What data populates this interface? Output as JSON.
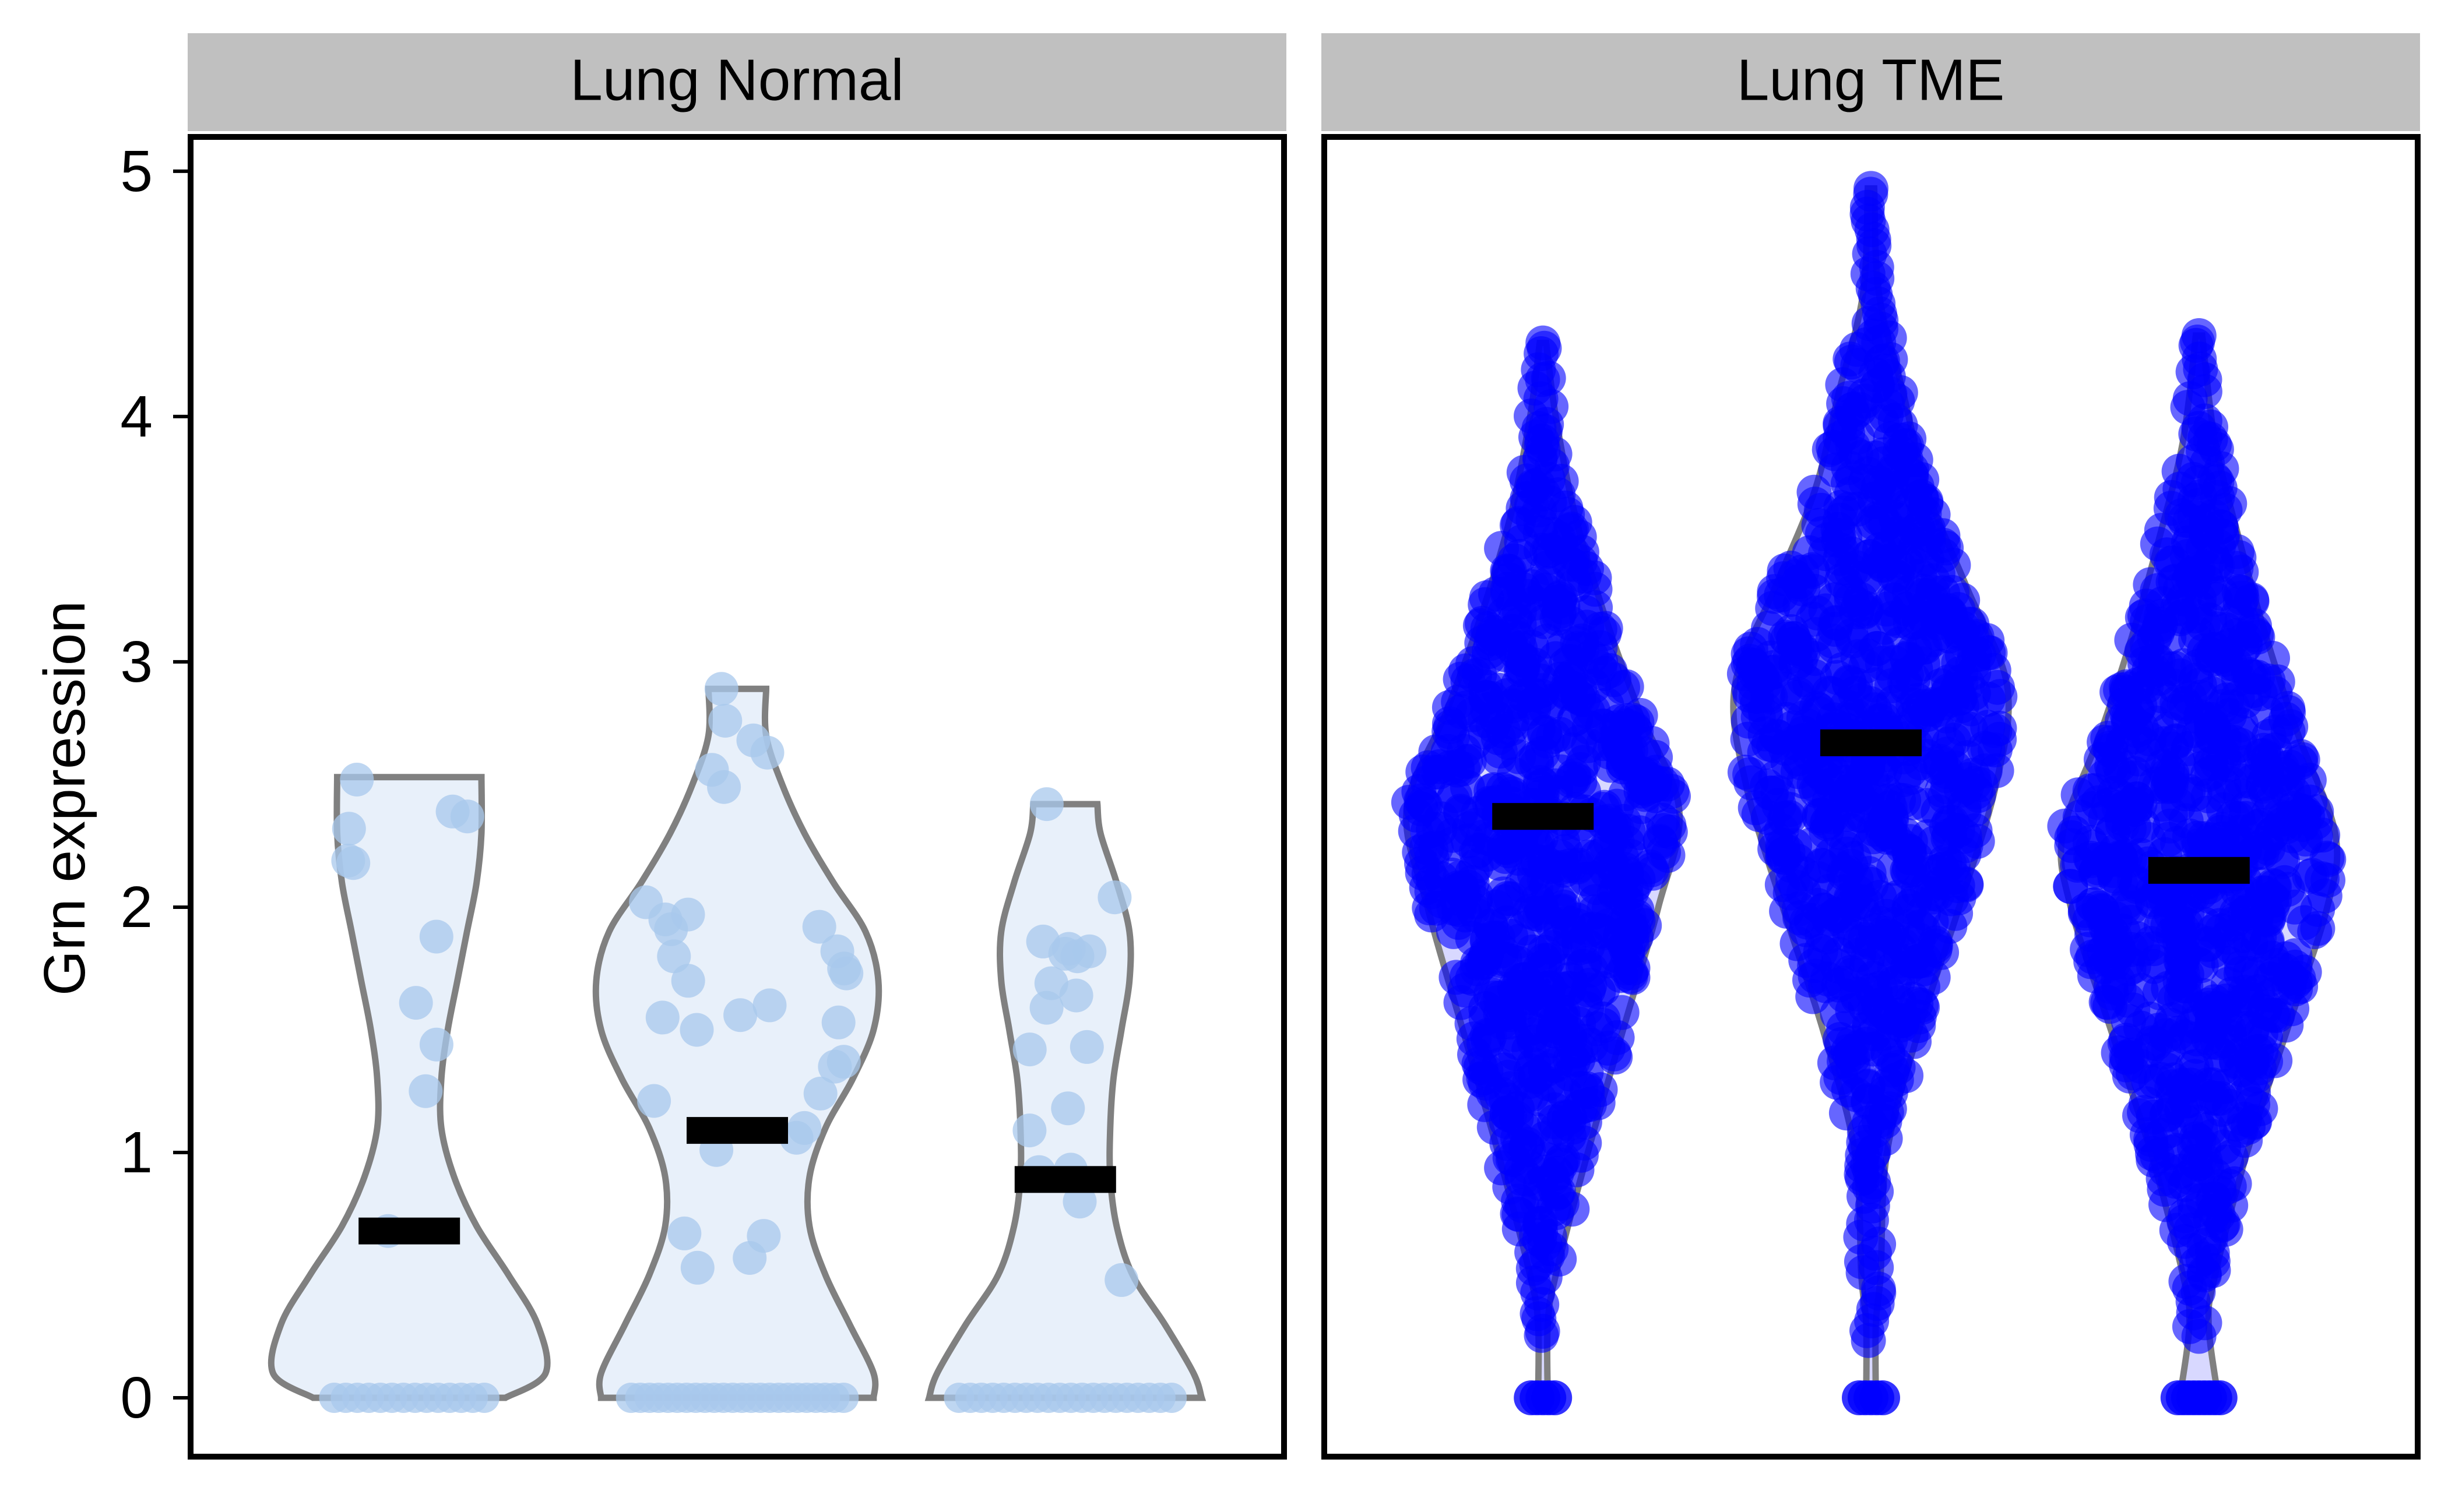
{
  "chart_data": {
    "type": "violin",
    "ylabel": "Grn expression",
    "ylim": [
      -0.24,
      5.14
    ],
    "yticks": [
      0,
      1,
      2,
      3,
      4,
      5
    ],
    "colors": {
      "normal_fill": "#e8f0fa",
      "normal_point": "#a8c8ec",
      "tme_point": "#0000ff",
      "violin_outline": "#808080",
      "median_bar": "#000000",
      "strip_bg": "#c0c0c0",
      "panel_border": "#000000"
    },
    "panels": [
      {
        "strip_label": "Lung Normal",
        "violins": [
          {
            "median": 0.68,
            "max": 2.53,
            "density": [
              [
                0,
                0.6
              ],
              [
                0.1,
                0.85
              ],
              [
                0.3,
                0.8
              ],
              [
                0.5,
                0.62
              ],
              [
                0.7,
                0.42
              ],
              [
                0.9,
                0.28
              ],
              [
                1.1,
                0.2
              ],
              [
                1.3,
                0.2
              ],
              [
                1.5,
                0.24
              ],
              [
                1.7,
                0.3
              ],
              [
                1.9,
                0.36
              ],
              [
                2.1,
                0.42
              ],
              [
                2.3,
                0.45
              ],
              [
                2.53,
                0.45
              ]
            ],
            "zeros": 14,
            "points": [
              2.52,
              2.39,
              2.37,
              2.32,
              2.19,
              2.18,
              1.88,
              1.61,
              1.44,
              1.25,
              0.68
            ]
          },
          {
            "median": 1.09,
            "max": 2.89,
            "density": [
              [
                0,
                0.85
              ],
              [
                0.1,
                0.85
              ],
              [
                0.3,
                0.7
              ],
              [
                0.5,
                0.55
              ],
              [
                0.7,
                0.45
              ],
              [
                0.9,
                0.45
              ],
              [
                1.1,
                0.55
              ],
              [
                1.3,
                0.72
              ],
              [
                1.5,
                0.85
              ],
              [
                1.7,
                0.88
              ],
              [
                1.9,
                0.8
              ],
              [
                2.1,
                0.6
              ],
              [
                2.3,
                0.42
              ],
              [
                2.5,
                0.28
              ],
              [
                2.7,
                0.18
              ],
              [
                2.89,
                0.18
              ]
            ],
            "zeros": 24,
            "points": [
              2.89,
              2.76,
              2.68,
              2.63,
              2.56,
              2.49,
              2.02,
              1.97,
              1.95,
              1.92,
              1.91,
              1.82,
              1.8,
              1.75,
              1.73,
              1.7,
              1.6,
              1.56,
              1.55,
              1.53,
              1.5,
              1.37,
              1.35,
              1.24,
              1.21,
              1.1,
              1.06,
              1.01,
              0.67,
              0.66,
              0.57,
              0.53
            ]
          },
          {
            "median": 0.89,
            "max": 2.42,
            "density": [
              [
                0,
                0.85
              ],
              [
                0.1,
                0.8
              ],
              [
                0.3,
                0.62
              ],
              [
                0.5,
                0.42
              ],
              [
                0.7,
                0.32
              ],
              [
                0.9,
                0.28
              ],
              [
                1.1,
                0.28
              ],
              [
                1.3,
                0.3
              ],
              [
                1.5,
                0.35
              ],
              [
                1.7,
                0.4
              ],
              [
                1.9,
                0.4
              ],
              [
                2.1,
                0.32
              ],
              [
                2.3,
                0.22
              ],
              [
                2.42,
                0.2
              ]
            ],
            "zeros": 20,
            "points": [
              2.42,
              2.04,
              1.86,
              1.83,
              1.82,
              1.8,
              1.81,
              1.69,
              1.64,
              1.59,
              1.43,
              1.42,
              1.18,
              1.09,
              0.93,
              0.92,
              0.8,
              0.48
            ]
          }
        ]
      },
      {
        "strip_label": "Lung TME",
        "violins": [
          {
            "median": 2.37,
            "max": 4.3,
            "density": [
              [
                0,
                0.03
              ],
              [
                0.3,
                0.03
              ],
              [
                0.5,
                0.08
              ],
              [
                1.0,
                0.28
              ],
              [
                1.5,
                0.5
              ],
              [
                2.0,
                0.72
              ],
              [
                2.4,
                0.85
              ],
              [
                2.8,
                0.6
              ],
              [
                3.2,
                0.38
              ],
              [
                3.6,
                0.2
              ],
              [
                4.0,
                0.08
              ],
              [
                4.3,
                0.02
              ]
            ],
            "zeros": 5
          },
          {
            "median": 2.67,
            "max": 4.93,
            "density": [
              [
                0,
                0.03
              ],
              [
                0.3,
                0.03
              ],
              [
                0.5,
                0.06
              ],
              [
                1.0,
                0.1
              ],
              [
                1.5,
                0.3
              ],
              [
                2.0,
                0.55
              ],
              [
                2.5,
                0.78
              ],
              [
                2.9,
                0.85
              ],
              [
                3.3,
                0.6
              ],
              [
                3.7,
                0.35
              ],
              [
                4.1,
                0.2
              ],
              [
                4.5,
                0.05
              ],
              [
                4.93,
                0.02
              ]
            ],
            "zeros": 5
          },
          {
            "median": 2.15,
            "max": 4.33,
            "density": [
              [
                0,
                0.12
              ],
              [
                0.3,
                0.06
              ],
              [
                0.5,
                0.1
              ],
              [
                1.0,
                0.3
              ],
              [
                1.5,
                0.55
              ],
              [
                2.0,
                0.8
              ],
              [
                2.3,
                0.85
              ],
              [
                2.7,
                0.62
              ],
              [
                3.1,
                0.42
              ],
              [
                3.5,
                0.25
              ],
              [
                3.9,
                0.1
              ],
              [
                4.33,
                0.02
              ]
            ],
            "zeros": 9
          }
        ]
      }
    ]
  }
}
